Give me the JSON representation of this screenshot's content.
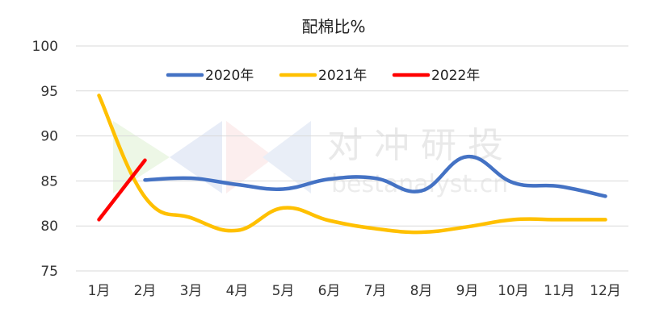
{
  "chart_data": {
    "type": "line",
    "title": "配棉比%",
    "categories": [
      "1月",
      "2月",
      "3月",
      "4月",
      "5月",
      "6月",
      "7月",
      "8月",
      "9月",
      "10月",
      "11月",
      "12月"
    ],
    "ylim": [
      75,
      100
    ],
    "yticks": [
      75,
      80,
      85,
      90,
      95,
      100
    ],
    "grid": true,
    "legend_position": "top",
    "smooth": true,
    "series": [
      {
        "name": "2020年",
        "color": "#4472C4",
        "values": [
          null,
          85.1,
          85.3,
          84.6,
          84.1,
          85.2,
          85.3,
          83.9,
          87.7,
          84.8,
          84.4,
          83.3
        ]
      },
      {
        "name": "2021年",
        "color": "#FFC000",
        "values": [
          94.5,
          83.2,
          80.9,
          79.5,
          82.0,
          80.6,
          79.7,
          79.3,
          79.9,
          80.7,
          80.7,
          80.7
        ]
      },
      {
        "name": "2022年",
        "color": "#FF0000",
        "values": [
          80.7,
          87.3,
          null,
          null,
          null,
          null,
          null,
          null,
          null,
          null,
          null,
          null
        ]
      }
    ]
  },
  "watermark": {
    "cn": "对 冲 研 投",
    "en": "bestanalyst.cn"
  }
}
